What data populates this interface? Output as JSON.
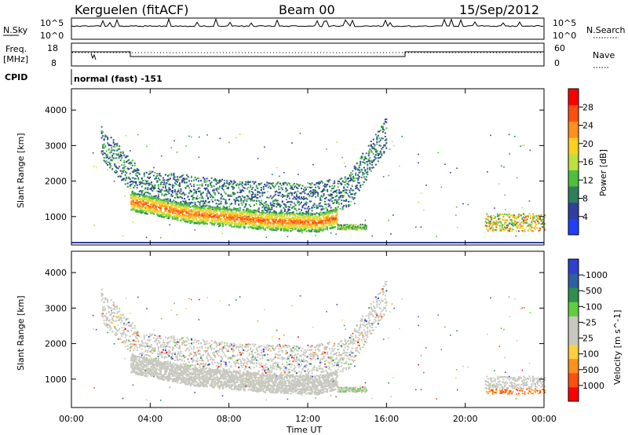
{
  "header": {
    "station": "Kerguelen (fitACF)",
    "beam": "Beam 00",
    "date": "15/Sep/2012"
  },
  "top_panels": {
    "nsky_label": "N.Sky",
    "nsky_ticks": [
      "10^5",
      "10^0"
    ],
    "nsearch_label": "N.Search",
    "nsearch_ticks": [
      "10^5",
      "10^0"
    ],
    "freq_label": "Freq.",
    "freq_unit": "[MHz]",
    "freq_ticks": [
      "18",
      "8"
    ],
    "nave_label": "Nave",
    "nave_ticks": [
      "60",
      "0"
    ],
    "cpid_label": "CPID",
    "cpid_value": "normal (fast) -151"
  },
  "colors": {
    "power_scale": [
      "#1f3fff",
      "#2f3f9f",
      "#2f7f5f",
      "#4fbf3f",
      "#bfdf3f",
      "#ffcf1f",
      "#ff8f1f",
      "#ff4f0f",
      "#ff0000"
    ],
    "velocity_scale": [
      "#2f3fcf",
      "#2f5f9f",
      "#2f8f4f",
      "#5fcf3f",
      "#c8c8c0",
      "#c8c8c0",
      "#ffcf3f",
      "#ff8f1f",
      "#ff4f0f",
      "#ff0000"
    ],
    "scatter_gray": "#c8c8c0",
    "ground_line": "#2f3f9f"
  },
  "chart_data": [
    {
      "type": "heatmap",
      "title": "",
      "xlabel": "",
      "ylabel": "Slant Range [km]",
      "x_ticks": [
        "00:00",
        "04:00",
        "08:00",
        "12:00",
        "16:00",
        "20:00",
        "00:00"
      ],
      "y_ticks": [
        "1000",
        "2000",
        "3000",
        "4000"
      ],
      "ylim": [
        200,
        4600
      ],
      "colorbar_label": "Power [dB]",
      "colorbar_ticks": [
        "4",
        "8",
        "12",
        "16",
        "20",
        "24",
        "28"
      ],
      "colorbar_range": [
        0,
        32
      ],
      "regions": [
        {
          "name": "outer_band",
          "t": [
            1.5,
            3.5,
            8,
            12,
            14,
            16
          ],
          "r": [
            3000,
            1800,
            1500,
            1400,
            1600,
            3300
          ],
          "power": 8
        },
        {
          "name": "main_band",
          "t": [
            3,
            6,
            10,
            12.5,
            13.5
          ],
          "r": [
            1450,
            1100,
            900,
            850,
            1000
          ],
          "power": 24
        },
        {
          "name": "secondary",
          "t": [
            13.5,
            15
          ],
          "r": [
            650,
            800
          ],
          "power": 14
        },
        {
          "name": "late_echo",
          "t": [
            21,
            24
          ],
          "r": [
            600,
            1100
          ],
          "power": 20
        }
      ]
    },
    {
      "type": "heatmap",
      "title": "",
      "xlabel": "Time UT",
      "ylabel": "Slant Range [km]",
      "x_ticks": [
        "00:00",
        "04:00",
        "08:00",
        "12:00",
        "16:00",
        "20:00",
        "00:00"
      ],
      "y_ticks": [
        "1000",
        "2000",
        "3000",
        "4000"
      ],
      "ylim": [
        200,
        4600
      ],
      "colorbar_label": "Velocity [m s^-1]",
      "colorbar_ticks": [
        "1000",
        "500",
        "100",
        "25",
        "-25",
        "-100",
        "-500",
        "-1000"
      ],
      "regions": [
        {
          "name": "outer_band",
          "t": [
            1.5,
            3.5,
            8,
            12,
            14,
            16
          ],
          "r": [
            3000,
            1800,
            1500,
            1400,
            1600,
            3300
          ],
          "velocity": 0
        },
        {
          "name": "main_band",
          "t": [
            3,
            6,
            10,
            12.5,
            13.5
          ],
          "r": [
            1450,
            1100,
            900,
            850,
            1000
          ],
          "velocity": 0
        },
        {
          "name": "late_echo",
          "t": [
            21,
            24
          ],
          "r": [
            600,
            1100
          ],
          "velocity": -500
        }
      ]
    }
  ]
}
